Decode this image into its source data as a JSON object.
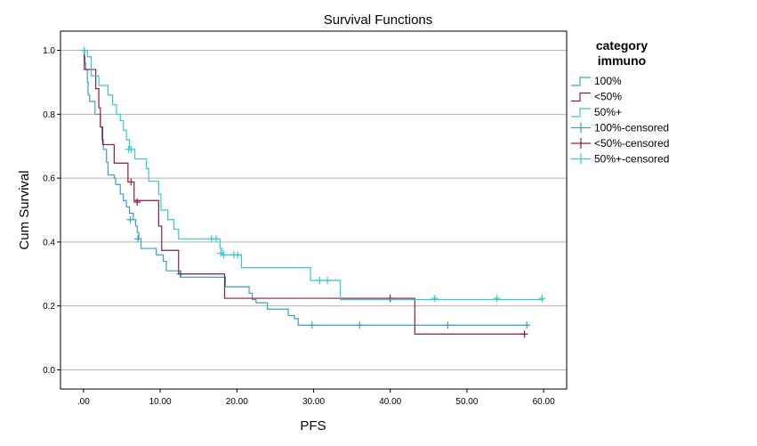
{
  "chart_data": {
    "type": "line",
    "title": "Survival Functions",
    "xlabel": "PFS",
    "ylabel": "Cum Survival",
    "xlim": [
      -3,
      63
    ],
    "ylim": [
      -0.06,
      1.06
    ],
    "x_ticks": [
      0,
      10,
      20,
      30,
      40,
      50,
      60
    ],
    "x_tick_labels": [
      ".00",
      "10.00",
      "20.00",
      "30.00",
      "40.00",
      "50.00",
      "60.00"
    ],
    "y_ticks": [
      0,
      0.2,
      0.4,
      0.6,
      0.8,
      1.0
    ],
    "y_tick_labels": [
      "0.0",
      "0.2",
      "0.4",
      "0.6",
      "0.8",
      "1.0"
    ],
    "grid": "horizontal",
    "legend_title": [
      "category",
      "immuno"
    ],
    "legend_position": "right",
    "series": [
      {
        "name": "100%",
        "color": "#3a9fcc",
        "steps": [
          [
            0,
            1.0
          ],
          [
            0.1,
            0.98
          ],
          [
            0.2,
            0.96
          ],
          [
            0.3,
            0.94
          ],
          [
            0.5,
            0.9
          ],
          [
            0.6,
            0.86
          ],
          [
            0.8,
            0.84
          ],
          [
            1.5,
            0.8
          ],
          [
            2.2,
            0.76
          ],
          [
            2.4,
            0.72
          ],
          [
            2.6,
            0.69
          ],
          [
            3.0,
            0.65
          ],
          [
            3.2,
            0.61
          ],
          [
            4.0,
            0.6
          ],
          [
            4.2,
            0.58
          ],
          [
            4.8,
            0.55
          ],
          [
            5.2,
            0.53
          ],
          [
            5.6,
            0.51
          ],
          [
            6.0,
            0.49
          ],
          [
            6.5,
            0.47
          ],
          [
            6.8,
            0.45
          ],
          [
            7.0,
            0.43
          ],
          [
            7.2,
            0.41
          ],
          [
            7.5,
            0.38
          ],
          [
            9.5,
            0.36
          ],
          [
            10.4,
            0.34
          ],
          [
            10.8,
            0.31
          ],
          [
            12.7,
            0.29
          ],
          [
            18.5,
            0.26
          ],
          [
            21.6,
            0.24
          ],
          [
            22.0,
            0.22
          ],
          [
            22.5,
            0.21
          ],
          [
            24.0,
            0.19
          ],
          [
            26.7,
            0.17
          ],
          [
            27.5,
            0.16
          ],
          [
            28.0,
            0.14
          ]
        ],
        "end_x": 58,
        "censored": [
          [
            6.1,
            0.47
          ],
          [
            7.1,
            0.41
          ],
          [
            12.6,
            0.3
          ],
          [
            29.8,
            0.14
          ],
          [
            36.0,
            0.14
          ],
          [
            47.5,
            0.14
          ],
          [
            57.8,
            0.14
          ]
        ]
      },
      {
        "name": "<50%",
        "color": "#8b1a4a",
        "steps": [
          [
            0,
            1.0
          ],
          [
            0.1,
            0.94
          ],
          [
            1.6,
            0.88
          ],
          [
            2.0,
            0.82
          ],
          [
            2.2,
            0.76
          ],
          [
            2.5,
            0.705
          ],
          [
            4.0,
            0.647
          ],
          [
            5.8,
            0.588
          ],
          [
            6.6,
            0.53
          ],
          [
            9.8,
            0.45
          ],
          [
            10.2,
            0.374
          ],
          [
            12.4,
            0.3
          ],
          [
            18.4,
            0.224
          ],
          [
            43.2,
            0.112
          ]
        ],
        "end_x": 57.5,
        "censored": [
          [
            6.2,
            0.588
          ],
          [
            7.0,
            0.525
          ],
          [
            40.0,
            0.224
          ],
          [
            57.5,
            0.112
          ]
        ]
      },
      {
        "name": "50%+",
        "color": "#36c8cf",
        "steps": [
          [
            0,
            1.0
          ],
          [
            0.5,
            0.98
          ],
          [
            1.0,
            0.92
          ],
          [
            2.0,
            0.89
          ],
          [
            3.2,
            0.86
          ],
          [
            3.8,
            0.83
          ],
          [
            4.3,
            0.8
          ],
          [
            4.8,
            0.78
          ],
          [
            5.2,
            0.75
          ],
          [
            5.6,
            0.72
          ],
          [
            6.0,
            0.69
          ],
          [
            6.7,
            0.66
          ],
          [
            8.2,
            0.63
          ],
          [
            8.5,
            0.59
          ],
          [
            9.8,
            0.55
          ],
          [
            10.1,
            0.5
          ],
          [
            11.0,
            0.47
          ],
          [
            11.8,
            0.44
          ],
          [
            12.4,
            0.41
          ],
          [
            17.8,
            0.38
          ],
          [
            18.1,
            0.36
          ],
          [
            20.6,
            0.32
          ],
          [
            29.6,
            0.28
          ],
          [
            33.5,
            0.22
          ]
        ],
        "end_x": 60,
        "censored": [
          [
            0.1,
            1.0
          ],
          [
            5.9,
            0.69
          ],
          [
            6.2,
            0.69
          ],
          [
            16.7,
            0.41
          ],
          [
            17.3,
            0.41
          ],
          [
            17.9,
            0.365
          ],
          [
            18.3,
            0.36
          ],
          [
            19.6,
            0.36
          ],
          [
            20.1,
            0.36
          ],
          [
            30.8,
            0.28
          ],
          [
            31.8,
            0.28
          ],
          [
            45.8,
            0.224
          ],
          [
            53.9,
            0.224
          ],
          [
            59.8,
            0.224
          ]
        ]
      }
    ],
    "legend_entries": [
      {
        "label": "100%",
        "color": "#3a9fcc",
        "kind": "step"
      },
      {
        "label": "<50%",
        "color": "#8b1a4a",
        "kind": "step"
      },
      {
        "label": "50%+",
        "color": "#36c8cf",
        "kind": "step"
      },
      {
        "label": "100%-censored",
        "color": "#3a9fcc",
        "kind": "censor"
      },
      {
        "label": "<50%-censored",
        "color": "#8b1a4a",
        "kind": "censor"
      },
      {
        "label": "50%+-censored",
        "color": "#36c8cf",
        "kind": "censor"
      }
    ]
  }
}
